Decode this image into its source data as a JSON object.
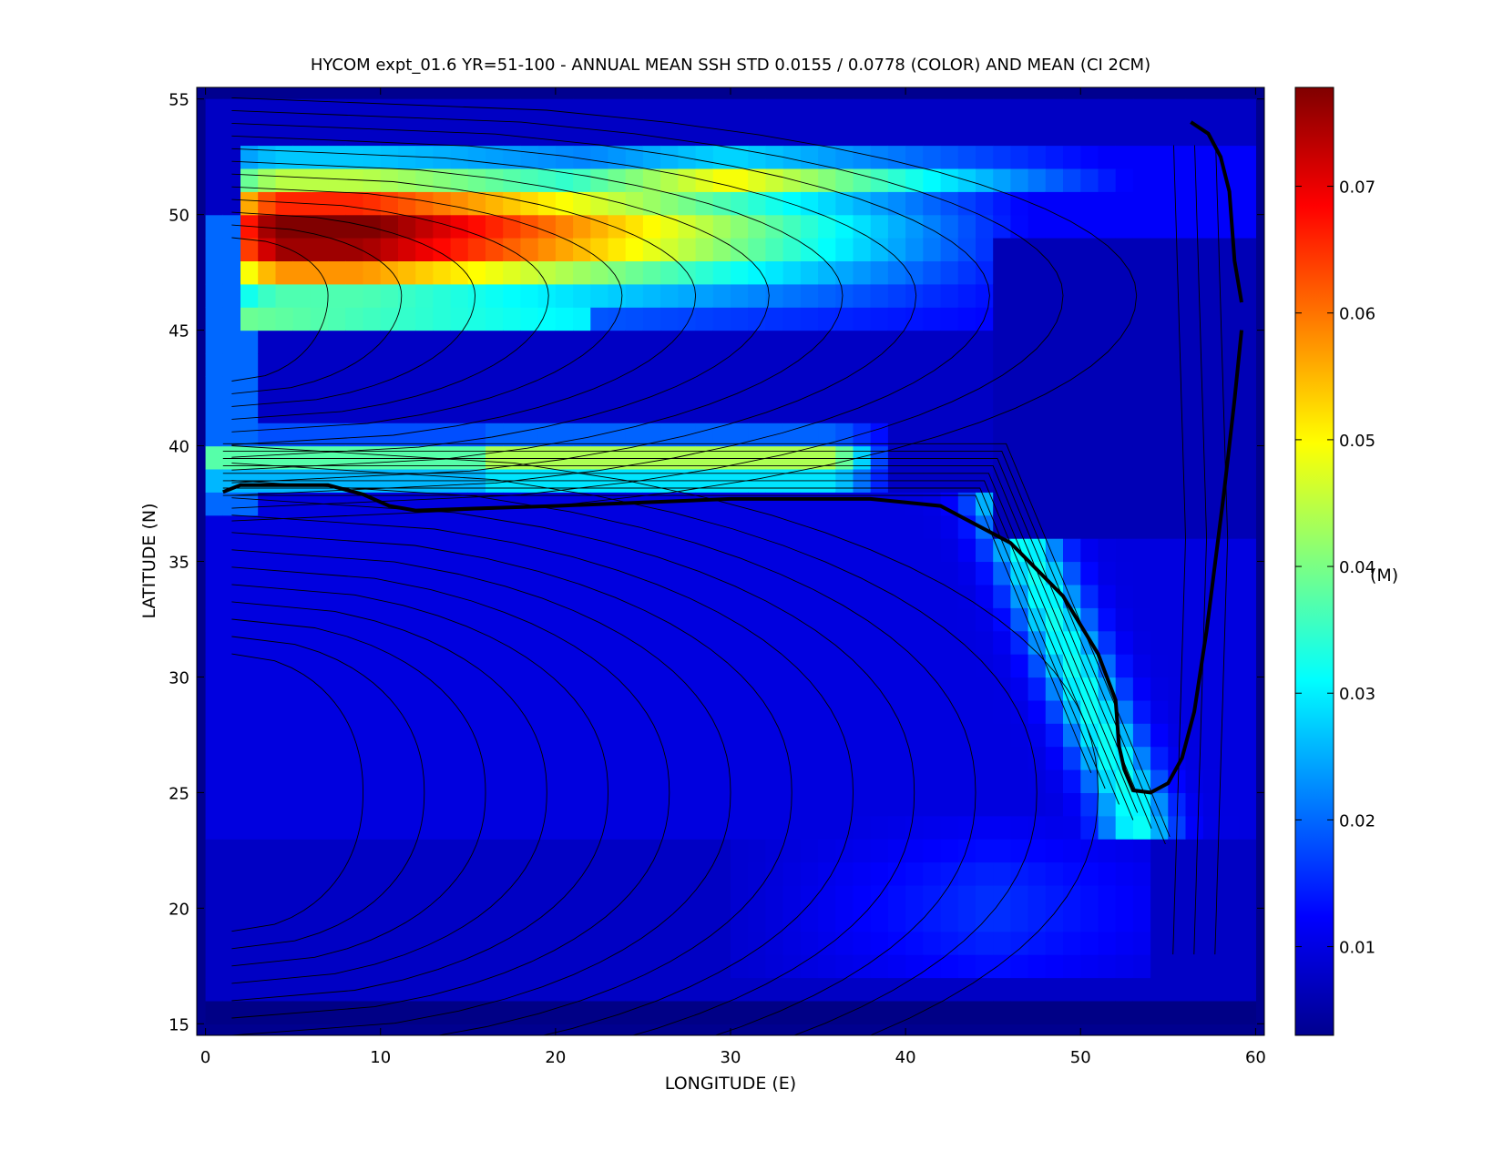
{
  "chart_data": {
    "type": "heatmap",
    "title": "HYCOM expt_01.6 YR=51-100 - ANNUAL MEAN SSH STD 0.0155 / 0.0778 (COLOR) AND MEAN (CI 2CM)",
    "xlabel": "LONGITUDE (E)",
    "ylabel": "LATITUDE (N)",
    "xlim": [
      -0.5,
      60.5
    ],
    "ylim": [
      14.5,
      55.5
    ],
    "xticks": [
      0,
      10,
      20,
      30,
      40,
      50,
      60
    ],
    "yticks": [
      15,
      20,
      25,
      30,
      35,
      40,
      45,
      50,
      55
    ],
    "grid": false,
    "colormap": "jet",
    "colorbar": {
      "range": [
        0.003,
        0.0778
      ],
      "ticks": [
        0.01,
        0.02,
        0.03,
        0.04,
        0.05,
        0.06,
        0.07
      ],
      "tick_labels": [
        "0.01",
        "0.02",
        "0.03",
        "0.04",
        "0.05",
        "0.06",
        "0.07"
      ],
      "unit_label": "(M)"
    },
    "color_field": {
      "description_of_features": [
        {
          "feature": "northern maximum",
          "lon": 9,
          "lat": 49,
          "value": 0.0778
        },
        {
          "feature": "northern band",
          "lon_range": [
            2,
            40
          ],
          "lat_range": [
            45,
            52
          ],
          "value_range": [
            0.03,
            0.075
          ]
        },
        {
          "feature": "separation jet",
          "lon_range": [
            1,
            38
          ],
          "lat_range": [
            38.5,
            40
          ],
          "value_range": [
            0.03,
            0.045
          ]
        },
        {
          "feature": "eastern boundary branch",
          "lon_range": [
            45,
            55
          ],
          "lat_range": [
            24,
            38
          ],
          "value_range": [
            0.02,
            0.035
          ]
        },
        {
          "feature": "subtropical interior",
          "lon_range": [
            0,
            45
          ],
          "lat_range": [
            16,
            36
          ],
          "value_range": [
            0.004,
            0.01
          ]
        }
      ]
    },
    "contour_interval_m": 0.02,
    "zero_contour": {
      "description": "thick black mean SSH contour",
      "segments": [
        {
          "lon": [
            1,
            2,
            7,
            9,
            10.5,
            12,
            20,
            30,
            38,
            42,
            46,
            49,
            51,
            52,
            52.2,
            52.5,
            53,
            54,
            55,
            55.8,
            56.5,
            57.2,
            57.7,
            58.2,
            58.8,
            59.2
          ],
          "lat": [
            38,
            38.3,
            38.3,
            37.9,
            37.4,
            37.2,
            37.4,
            37.7,
            37.7,
            37.4,
            35.8,
            33.5,
            31,
            29,
            27,
            26,
            25.1,
            25,
            25.4,
            26.5,
            28.5,
            32,
            35,
            38,
            42,
            45
          ]
        },
        {
          "lon": [
            59.2,
            58.8,
            58.5,
            58,
            57.3,
            56.3
          ],
          "lat": [
            46.2,
            48,
            51,
            52.5,
            53.5,
            54
          ]
        }
      ]
    }
  }
}
